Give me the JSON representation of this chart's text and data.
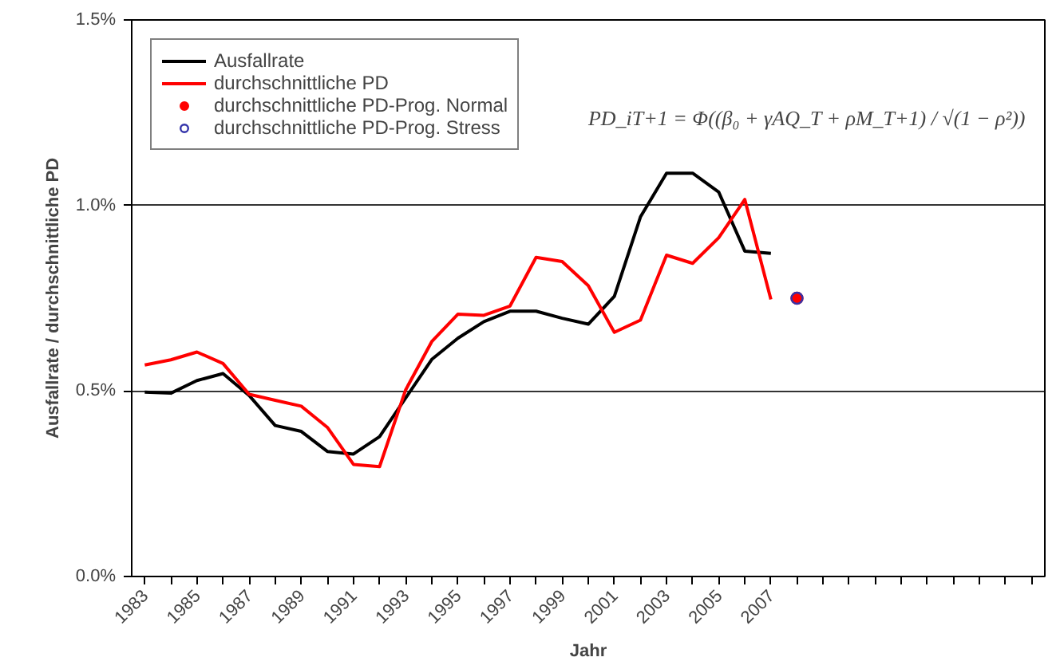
{
  "chart_data": {
    "type": "line",
    "xlabel": "Jahr",
    "ylabel": "Ausfallrate / durchschnittliche PD",
    "x": [
      1983,
      1984,
      1985,
      1986,
      1987,
      1988,
      1989,
      1990,
      1991,
      1992,
      1993,
      1994,
      1995,
      1996,
      1997,
      1998,
      1999,
      2000,
      2001,
      2002,
      2003,
      2004,
      2005,
      2006,
      2007
    ],
    "series": [
      {
        "name": "Ausfallrate",
        "color": "#000000",
        "values": [
          0.497,
          0.494,
          0.528,
          0.547,
          0.488,
          0.407,
          0.391,
          0.337,
          0.33,
          0.377,
          0.481,
          0.585,
          0.642,
          0.687,
          0.715,
          0.715,
          0.696,
          0.68,
          0.755,
          0.969,
          1.087,
          1.087,
          1.036,
          0.877,
          0.871
        ]
      },
      {
        "name": "durchschnittliche PD",
        "color": "#ff0000",
        "values": [
          0.57,
          0.584,
          0.605,
          0.574,
          0.491,
          0.475,
          0.459,
          0.402,
          0.302,
          0.296,
          0.503,
          0.633,
          0.707,
          0.704,
          0.729,
          0.86,
          0.849,
          0.784,
          0.658,
          0.691,
          0.866,
          0.844,
          0.913,
          1.016,
          0.747
        ]
      },
      {
        "name": "durchschnittliche PD-Prog. Normal",
        "type": "scatter",
        "marker": "circle",
        "color": "#ff0000",
        "x": [
          2008
        ],
        "values": [
          0.75
        ]
      },
      {
        "name": "durchschnittliche PD-Prog. Stress",
        "type": "scatter",
        "marker": "circle",
        "color": "#3333aa",
        "x": [
          2008
        ],
        "values": [
          0.75
        ]
      }
    ],
    "xlim": [
      1982.5,
      2017.5
    ],
    "xticks": [
      {
        "value": 1983,
        "label": "1983"
      },
      {
        "value": 1984,
        "label": null
      },
      {
        "value": 1985,
        "label": "1985"
      },
      {
        "value": 1986,
        "label": null
      },
      {
        "value": 1987,
        "label": "1987"
      },
      {
        "value": 1988,
        "label": null
      },
      {
        "value": 1989,
        "label": "1989"
      },
      {
        "value": 1990,
        "label": null
      },
      {
        "value": 1991,
        "label": "1991"
      },
      {
        "value": 1992,
        "label": null
      },
      {
        "value": 1993,
        "label": "1993"
      },
      {
        "value": 1994,
        "label": null
      },
      {
        "value": 1995,
        "label": "1995"
      },
      {
        "value": 1996,
        "label": null
      },
      {
        "value": 1997,
        "label": "1997"
      },
      {
        "value": 1998,
        "label": null
      },
      {
        "value": 1999,
        "label": "1999"
      },
      {
        "value": 2000,
        "label": null
      },
      {
        "value": 2001,
        "label": "2001"
      },
      {
        "value": 2002,
        "label": null
      },
      {
        "value": 2003,
        "label": "2003"
      },
      {
        "value": 2004,
        "label": null
      },
      {
        "value": 2005,
        "label": "2005"
      },
      {
        "value": 2006,
        "label": null
      },
      {
        "value": 2007,
        "label": "2007"
      },
      {
        "value": 2008,
        "label": null
      },
      {
        "value": 2009,
        "label": null
      },
      {
        "value": 2010,
        "label": null
      },
      {
        "value": 2011,
        "label": null
      },
      {
        "value": 2012,
        "label": null
      },
      {
        "value": 2013,
        "label": null
      },
      {
        "value": 2014,
        "label": null
      },
      {
        "value": 2015,
        "label": null
      },
      {
        "value": 2016,
        "label": null
      },
      {
        "value": 2017,
        "label": null
      }
    ],
    "ylim": [
      0,
      1.5
    ],
    "yticks": [
      {
        "value": 0,
        "label": "0.0%"
      },
      {
        "value": 0.5,
        "label": "0.5%"
      },
      {
        "value": 1.0,
        "label": "1.0%"
      },
      {
        "value": 1.5,
        "label": "1.5%"
      }
    ],
    "grid": "y",
    "legend": "top left",
    "line_style": "solid",
    "annotations": [
      "PD_iT+1 = Φ((β₀ + γAQ_T + ρM_T+1) / √(1 − ρ²))"
    ]
  }
}
